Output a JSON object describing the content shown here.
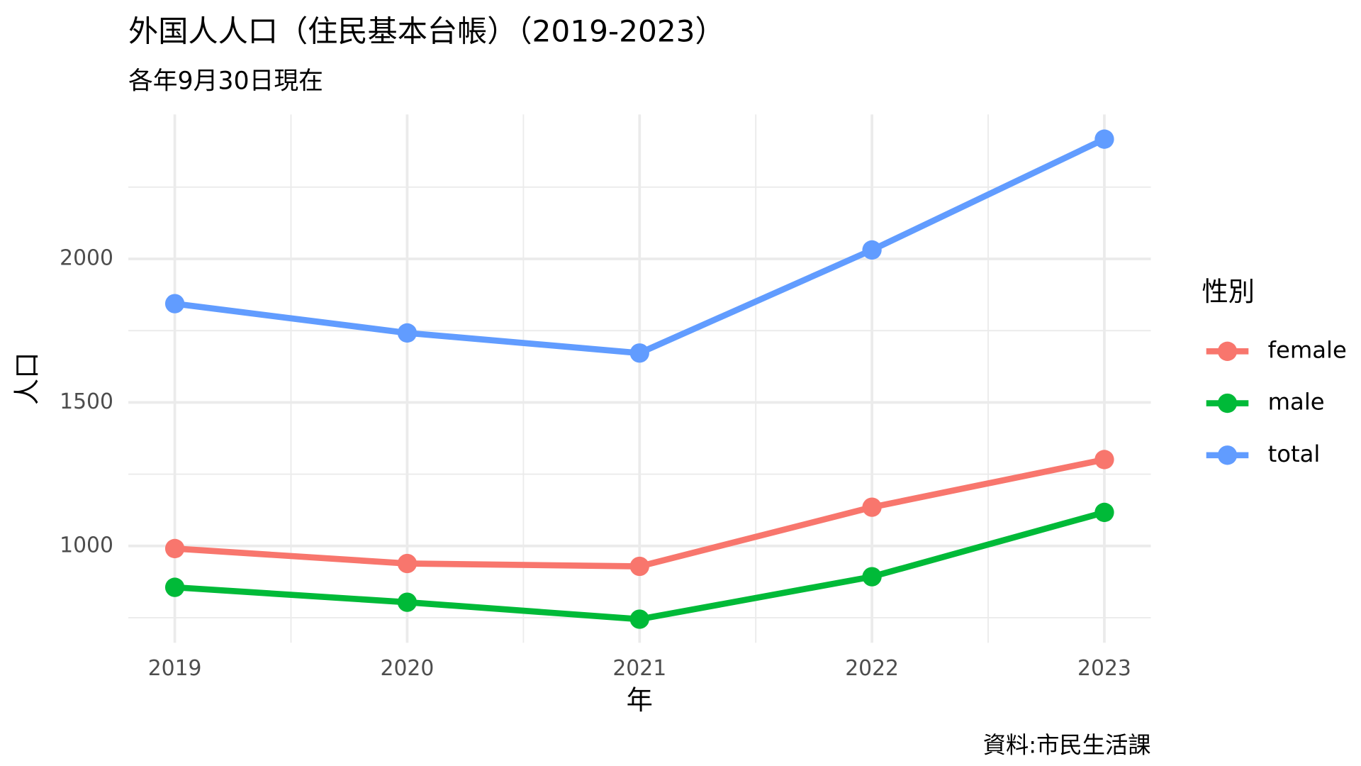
{
  "chart_data": {
    "type": "line",
    "title": "外国人人口（住民基本台帳）（2019-2023）",
    "subtitle": "各年9月30日現在",
    "x_label": "年",
    "y_label": "人口",
    "legend_title": "性別",
    "caption": "資料:市民生活課",
    "x": [
      2019,
      2020,
      2021,
      2022,
      2023
    ],
    "series": [
      {
        "name": "female",
        "color": "#f8766d",
        "values": [
          991,
          939,
          929,
          1135,
          1301
        ]
      },
      {
        "name": "male",
        "color": "#00ba38",
        "values": [
          856,
          804,
          745,
          893,
          1117
        ]
      },
      {
        "name": "total",
        "color": "#619cff",
        "values": [
          1844,
          1742,
          1672,
          2031,
          2417
        ]
      }
    ],
    "xlim": [
      2018.8,
      2023.2
    ],
    "xticks": [
      2019,
      2020,
      2021,
      2022,
      2023
    ],
    "ylim": [
      663,
      2503
    ],
    "yticks": [
      1000,
      1500,
      2000
    ],
    "grid": true,
    "legend_position": "right"
  }
}
